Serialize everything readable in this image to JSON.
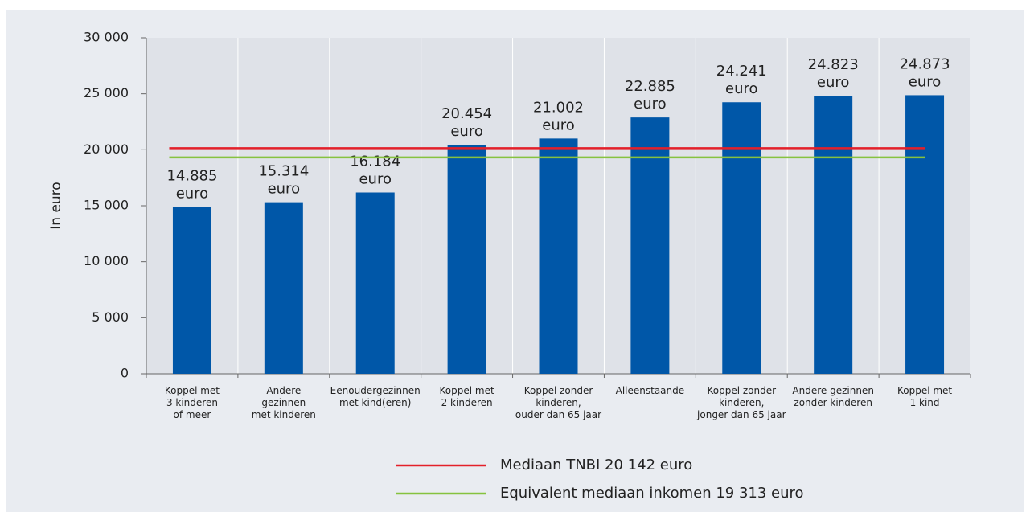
{
  "chart_data": {
    "type": "bar",
    "ylabel": "In euro",
    "categories": [
      "Koppel met\n3 kinderen\nof meer",
      "Andere\ngezinnen\nmet kinderen",
      "Eenoudergezinnen\nmet kind(eren)",
      "Koppel met\n2 kinderen",
      "Koppel zonder\nkinderen,\nouder dan 65 jaar",
      "Alleenstaande",
      "Koppel zonder\nkinderen,\njonger dan 65 jaar",
      "Andere gezinnen\nzonder kinderen",
      "Koppel met\n1 kind"
    ],
    "values": [
      14885,
      15314,
      16184,
      20454,
      21002,
      22885,
      24241,
      24823,
      24873
    ],
    "value_labels": [
      "14.885\neuro",
      "15.314\neuro",
      "16.184\neuro",
      "20.454\neuro",
      "21.002\neuro",
      "22.885\neuro",
      "24.241\neuro",
      "24.823\neuro",
      "24.873\neuro"
    ],
    "color": "#0057a8",
    "ylim": [
      0,
      30000
    ],
    "yticks": [
      0,
      {
        "value": 5000,
        "label": "5 000"
      },
      {
        "value": 10000,
        "label": "10 000"
      },
      {
        "value": 15000,
        "label": "15 000"
      },
      {
        "value": 20000,
        "label": "20 000"
      },
      {
        "value": 25000,
        "label": "25 000"
      },
      {
        "value": 30000,
        "label": "30 000"
      }
    ],
    "reference_lines": [
      {
        "name": "Mediaan TNBI 20 142 euro",
        "value": 20142,
        "color": "#e3202a"
      },
      {
        "name": "Equivalent mediaan inkomen 19 313 euro",
        "value": 19313,
        "color": "#86c23f"
      }
    ]
  }
}
